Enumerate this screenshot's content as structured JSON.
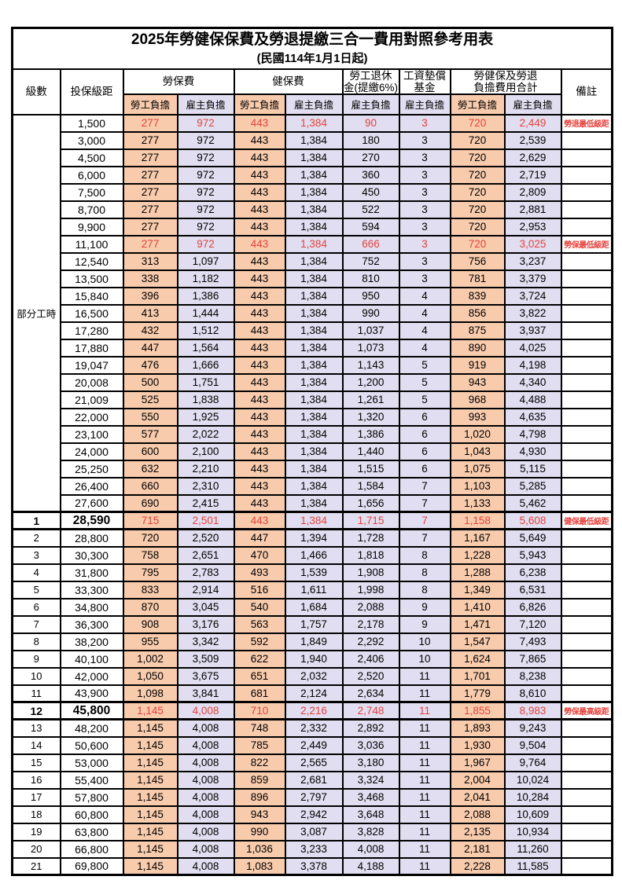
{
  "title": "2025年勞健保保費及勞退提繳三合一費用對照參考用表",
  "subtitle": "(民國114年1月1日起)",
  "colors": {
    "employee_bg": "#F8CBAD",
    "employer_bg": "#E0DEF0",
    "highlight_red": "#E5423C",
    "border": "#000000"
  },
  "header": {
    "level": "級數",
    "bracket": "投保級距",
    "labor_insurance": "勞保費",
    "health_insurance": "健保費",
    "pension": [
      "勞工退休",
      "金(提繳6%)"
    ],
    "wage_fund": [
      "工資墊償",
      "基金"
    ],
    "total": [
      "勞健保及勞退",
      "負擔費用合計"
    ],
    "remark": "備註",
    "employee": "勞工負擔",
    "employer": "雇主負擔"
  },
  "part_time_label": "部分工時",
  "rows": [
    {
      "level_rowspan": 23,
      "bracket": "1,500",
      "cells": [
        "277",
        "972",
        "443",
        "1,384",
        "90",
        "3",
        "720",
        "2,449"
      ],
      "remark": "勞退最低級距",
      "red": true
    },
    {
      "bracket": "3,000",
      "cells": [
        "277",
        "972",
        "443",
        "1,384",
        "180",
        "3",
        "720",
        "2,539"
      ]
    },
    {
      "bracket": "4,500",
      "cells": [
        "277",
        "972",
        "443",
        "1,384",
        "270",
        "3",
        "720",
        "2,629"
      ]
    },
    {
      "bracket": "6,000",
      "cells": [
        "277",
        "972",
        "443",
        "1,384",
        "360",
        "3",
        "720",
        "2,719"
      ]
    },
    {
      "bracket": "7,500",
      "cells": [
        "277",
        "972",
        "443",
        "1,384",
        "450",
        "3",
        "720",
        "2,809"
      ]
    },
    {
      "bracket": "8,700",
      "cells": [
        "277",
        "972",
        "443",
        "1,384",
        "522",
        "3",
        "720",
        "2,881"
      ]
    },
    {
      "bracket": "9,900",
      "cells": [
        "277",
        "972",
        "443",
        "1,384",
        "594",
        "3",
        "720",
        "2,953"
      ]
    },
    {
      "bracket": "11,100",
      "cells": [
        "277",
        "972",
        "443",
        "1,384",
        "666",
        "3",
        "720",
        "3,025"
      ],
      "remark": "勞保最低級距",
      "red": true
    },
    {
      "bracket": "12,540",
      "cells": [
        "313",
        "1,097",
        "443",
        "1,384",
        "752",
        "3",
        "756",
        "3,237"
      ]
    },
    {
      "bracket": "13,500",
      "cells": [
        "338",
        "1,182",
        "443",
        "1,384",
        "810",
        "3",
        "781",
        "3,379"
      ]
    },
    {
      "bracket": "15,840",
      "cells": [
        "396",
        "1,386",
        "443",
        "1,384",
        "950",
        "4",
        "839",
        "3,724"
      ]
    },
    {
      "bracket": "16,500",
      "cells": [
        "413",
        "1,444",
        "443",
        "1,384",
        "990",
        "4",
        "856",
        "3,822"
      ]
    },
    {
      "bracket": "17,280",
      "cells": [
        "432",
        "1,512",
        "443",
        "1,384",
        "1,037",
        "4",
        "875",
        "3,937"
      ]
    },
    {
      "bracket": "17,880",
      "cells": [
        "447",
        "1,564",
        "443",
        "1,384",
        "1,073",
        "4",
        "890",
        "4,025"
      ]
    },
    {
      "bracket": "19,047",
      "cells": [
        "476",
        "1,666",
        "443",
        "1,384",
        "1,143",
        "5",
        "919",
        "4,198"
      ]
    },
    {
      "bracket": "20,008",
      "cells": [
        "500",
        "1,751",
        "443",
        "1,384",
        "1,200",
        "5",
        "943",
        "4,340"
      ]
    },
    {
      "bracket": "21,009",
      "cells": [
        "525",
        "1,838",
        "443",
        "1,384",
        "1,261",
        "5",
        "968",
        "4,488"
      ]
    },
    {
      "bracket": "22,000",
      "cells": [
        "550",
        "1,925",
        "443",
        "1,384",
        "1,320",
        "6",
        "993",
        "4,635"
      ]
    },
    {
      "bracket": "23,100",
      "cells": [
        "577",
        "2,022",
        "443",
        "1,384",
        "1,386",
        "6",
        "1,020",
        "4,798"
      ]
    },
    {
      "bracket": "24,000",
      "cells": [
        "600",
        "2,100",
        "443",
        "1,384",
        "1,440",
        "6",
        "1,043",
        "4,930"
      ]
    },
    {
      "bracket": "25,250",
      "cells": [
        "632",
        "2,210",
        "443",
        "1,384",
        "1,515",
        "6",
        "1,075",
        "5,115"
      ]
    },
    {
      "bracket": "26,400",
      "cells": [
        "660",
        "2,310",
        "443",
        "1,384",
        "1,584",
        "7",
        "1,103",
        "5,285"
      ]
    },
    {
      "bracket": "27,600",
      "cells": [
        "690",
        "2,415",
        "443",
        "1,384",
        "1,656",
        "7",
        "1,133",
        "5,462"
      ]
    },
    {
      "level": "1",
      "bracket": "28,590",
      "cells": [
        "715",
        "2,501",
        "443",
        "1,384",
        "1,715",
        "7",
        "1,158",
        "5,608"
      ],
      "remark": "健保最低級距",
      "red": true,
      "bold": true,
      "thick": true
    },
    {
      "level": "2",
      "bracket": "28,800",
      "cells": [
        "720",
        "2,520",
        "447",
        "1,394",
        "1,728",
        "7",
        "1,167",
        "5,649"
      ]
    },
    {
      "level": "3",
      "bracket": "30,300",
      "cells": [
        "758",
        "2,651",
        "470",
        "1,466",
        "1,818",
        "8",
        "1,228",
        "5,943"
      ]
    },
    {
      "level": "4",
      "bracket": "31,800",
      "cells": [
        "795",
        "2,783",
        "493",
        "1,539",
        "1,908",
        "8",
        "1,288",
        "6,238"
      ]
    },
    {
      "level": "5",
      "bracket": "33,300",
      "cells": [
        "833",
        "2,914",
        "516",
        "1,611",
        "1,998",
        "8",
        "1,349",
        "6,531"
      ]
    },
    {
      "level": "6",
      "bracket": "34,800",
      "cells": [
        "870",
        "3,045",
        "540",
        "1,684",
        "2,088",
        "9",
        "1,410",
        "6,826"
      ]
    },
    {
      "level": "7",
      "bracket": "36,300",
      "cells": [
        "908",
        "3,176",
        "563",
        "1,757",
        "2,178",
        "9",
        "1,471",
        "7,120"
      ]
    },
    {
      "level": "8",
      "bracket": "38,200",
      "cells": [
        "955",
        "3,342",
        "592",
        "1,849",
        "2,292",
        "10",
        "1,547",
        "7,493"
      ]
    },
    {
      "level": "9",
      "bracket": "40,100",
      "cells": [
        "1,002",
        "3,509",
        "622",
        "1,940",
        "2,406",
        "10",
        "1,624",
        "7,865"
      ]
    },
    {
      "level": "10",
      "bracket": "42,000",
      "cells": [
        "1,050",
        "3,675",
        "651",
        "2,032",
        "2,520",
        "11",
        "1,701",
        "8,238"
      ]
    },
    {
      "level": "11",
      "bracket": "43,900",
      "cells": [
        "1,098",
        "3,841",
        "681",
        "2,124",
        "2,634",
        "11",
        "1,779",
        "8,610"
      ]
    },
    {
      "level": "12",
      "bracket": "45,800",
      "cells": [
        "1,145",
        "4,008",
        "710",
        "2,216",
        "2,748",
        "11",
        "1,855",
        "8,983"
      ],
      "remark": "勞保最高級距",
      "red": true,
      "bold": true,
      "thick": true
    },
    {
      "level": "13",
      "bracket": "48,200",
      "cells": [
        "1,145",
        "4,008",
        "748",
        "2,332",
        "2,892",
        "11",
        "1,893",
        "9,243"
      ]
    },
    {
      "level": "14",
      "bracket": "50,600",
      "cells": [
        "1,145",
        "4,008",
        "785",
        "2,449",
        "3,036",
        "11",
        "1,930",
        "9,504"
      ]
    },
    {
      "level": "15",
      "bracket": "53,000",
      "cells": [
        "1,145",
        "4,008",
        "822",
        "2,565",
        "3,180",
        "11",
        "1,967",
        "9,764"
      ]
    },
    {
      "level": "16",
      "bracket": "55,400",
      "cells": [
        "1,145",
        "4,008",
        "859",
        "2,681",
        "3,324",
        "11",
        "2,004",
        "10,024"
      ]
    },
    {
      "level": "17",
      "bracket": "57,800",
      "cells": [
        "1,145",
        "4,008",
        "896",
        "2,797",
        "3,468",
        "11",
        "2,041",
        "10,284"
      ]
    },
    {
      "level": "18",
      "bracket": "60,800",
      "cells": [
        "1,145",
        "4,008",
        "943",
        "2,942",
        "3,648",
        "11",
        "2,088",
        "10,609"
      ]
    },
    {
      "level": "19",
      "bracket": "63,800",
      "cells": [
        "1,145",
        "4,008",
        "990",
        "3,087",
        "3,828",
        "11",
        "2,135",
        "10,934"
      ]
    },
    {
      "level": "20",
      "bracket": "66,800",
      "cells": [
        "1,145",
        "4,008",
        "1,036",
        "3,233",
        "4,008",
        "11",
        "2,181",
        "11,260"
      ]
    },
    {
      "level": "21",
      "bracket": "69,800",
      "cells": [
        "1,145",
        "4,008",
        "1,083",
        "3,378",
        "4,188",
        "11",
        "2,228",
        "11,585"
      ]
    }
  ]
}
